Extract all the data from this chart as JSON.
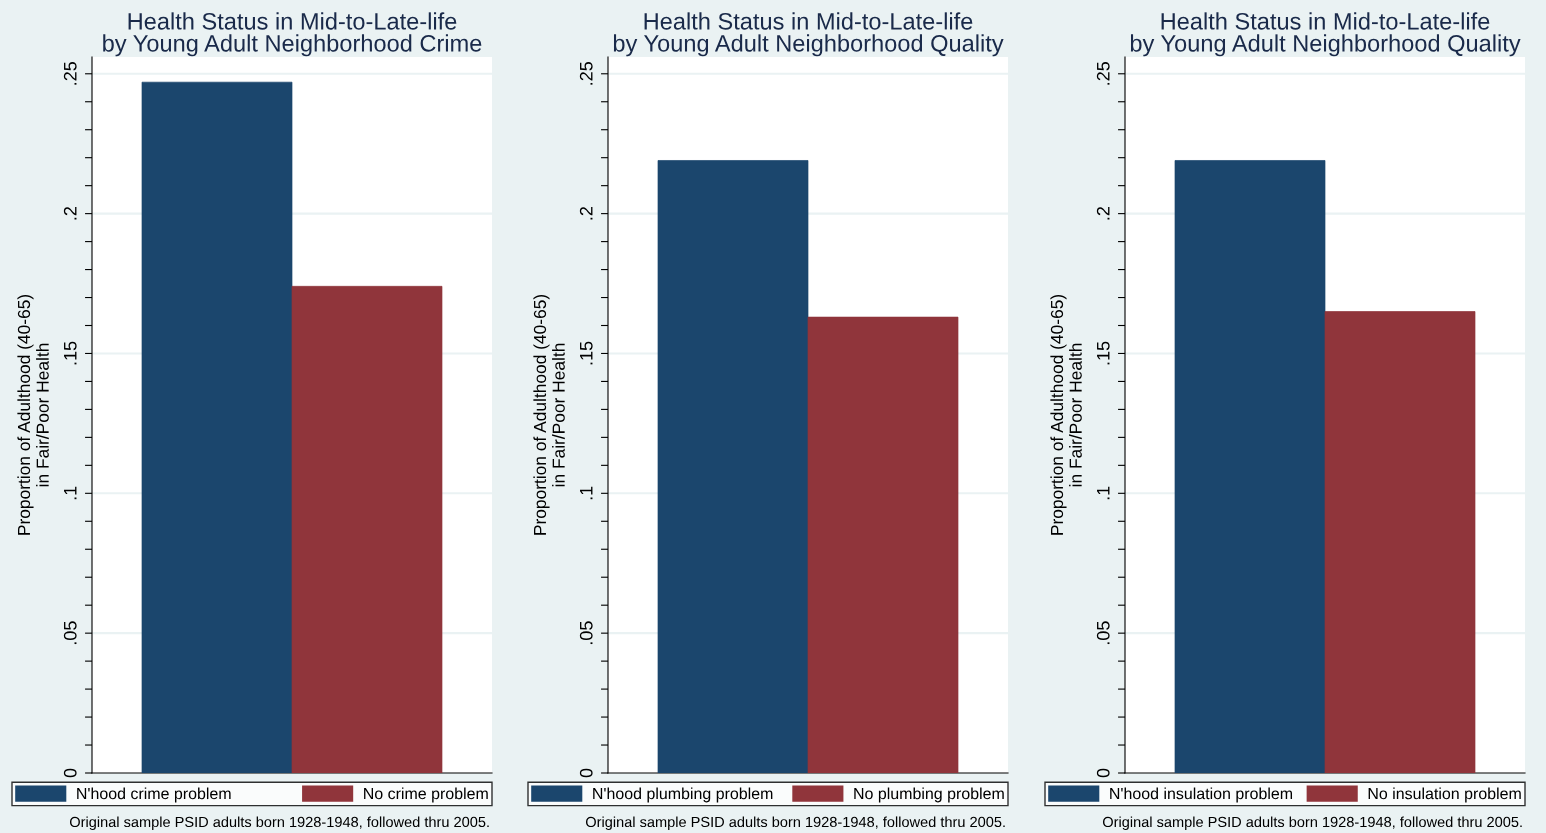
{
  "chart_data": [
    {
      "type": "bar",
      "title": "Health Status in Mid-to-Late-life\nby Young Adult Neighborhood Crime",
      "ylabel": "Proportion of Adulthood (40-65)\nin Fair/Poor Health",
      "categories": [
        null
      ],
      "series": [
        {
          "name": "N'hood crime problem",
          "color": "#1b466d",
          "values": [
            0.247
          ]
        },
        {
          "name": "No crime problem",
          "color": "#90353b",
          "values": [
            0.174
          ]
        }
      ],
      "ylim": [
        0,
        0.256
      ],
      "yticks": [
        {
          "value": 0,
          "label": "0"
        },
        {
          "value": 0.01,
          "label": null
        },
        {
          "value": 0.02,
          "label": null
        },
        {
          "value": 0.03,
          "label": null
        },
        {
          "value": 0.04,
          "label": null
        },
        {
          "value": 0.05,
          "label": ".05"
        },
        {
          "value": 0.06,
          "label": null
        },
        {
          "value": 0.07,
          "label": null
        },
        {
          "value": 0.08,
          "label": null
        },
        {
          "value": 0.09,
          "label": null
        },
        {
          "value": 0.1,
          "label": ".1"
        },
        {
          "value": 0.11,
          "label": null
        },
        {
          "value": 0.12,
          "label": null
        },
        {
          "value": 0.13,
          "label": null
        },
        {
          "value": 0.14,
          "label": null
        },
        {
          "value": 0.15,
          "label": ".15"
        },
        {
          "value": 0.16,
          "label": null
        },
        {
          "value": 0.17,
          "label": null
        },
        {
          "value": 0.18,
          "label": null
        },
        {
          "value": 0.19,
          "label": null
        },
        {
          "value": 0.2,
          "label": ".2"
        },
        {
          "value": 0.21,
          "label": null
        },
        {
          "value": 0.22,
          "label": null
        },
        {
          "value": 0.23,
          "label": null
        },
        {
          "value": 0.24,
          "label": null
        },
        {
          "value": 0.25,
          "label": ".25"
        }
      ],
      "grid": "y",
      "legend": "bottom",
      "annotations": [
        "Original sample PSID adults born 1928-1948, followed thru 2005."
      ]
    },
    {
      "type": "bar",
      "title": "Health Status in Mid-to-Late-life\nby Young Adult Neighborhood Quality",
      "ylabel": "Proportion of Adulthood (40-65)\nin Fair/Poor Health",
      "categories": [
        null
      ],
      "series": [
        {
          "name": "N'hood plumbing problem",
          "color": "#1b466d",
          "values": [
            0.219
          ]
        },
        {
          "name": "No plumbing problem",
          "color": "#90353b",
          "values": [
            0.163
          ]
        }
      ],
      "ylim": [
        0,
        0.256
      ],
      "yticks": [
        {
          "value": 0,
          "label": "0"
        },
        {
          "value": 0.01,
          "label": null
        },
        {
          "value": 0.02,
          "label": null
        },
        {
          "value": 0.03,
          "label": null
        },
        {
          "value": 0.04,
          "label": null
        },
        {
          "value": 0.05,
          "label": ".05"
        },
        {
          "value": 0.06,
          "label": null
        },
        {
          "value": 0.07,
          "label": null
        },
        {
          "value": 0.08,
          "label": null
        },
        {
          "value": 0.09,
          "label": null
        },
        {
          "value": 0.1,
          "label": ".1"
        },
        {
          "value": 0.11,
          "label": null
        },
        {
          "value": 0.12,
          "label": null
        },
        {
          "value": 0.13,
          "label": null
        },
        {
          "value": 0.14,
          "label": null
        },
        {
          "value": 0.15,
          "label": ".15"
        },
        {
          "value": 0.16,
          "label": null
        },
        {
          "value": 0.17,
          "label": null
        },
        {
          "value": 0.18,
          "label": null
        },
        {
          "value": 0.19,
          "label": null
        },
        {
          "value": 0.2,
          "label": ".2"
        },
        {
          "value": 0.21,
          "label": null
        },
        {
          "value": 0.22,
          "label": null
        },
        {
          "value": 0.23,
          "label": null
        },
        {
          "value": 0.24,
          "label": null
        },
        {
          "value": 0.25,
          "label": ".25"
        }
      ],
      "grid": "y",
      "legend": "bottom",
      "annotations": [
        "Original sample PSID adults born 1928-1948, followed thru 2005."
      ]
    },
    {
      "type": "bar",
      "title": "Health Status in Mid-to-Late-life\nby Young Adult Neighborhood Quality",
      "ylabel": "Proportion of Adulthood (40-65)\nin Fair/Poor Health",
      "categories": [
        null
      ],
      "series": [
        {
          "name": "N'hood insulation problem",
          "color": "#1b466d",
          "values": [
            0.219
          ]
        },
        {
          "name": "No insulation problem",
          "color": "#90353b",
          "values": [
            0.165
          ]
        }
      ],
      "ylim": [
        0,
        0.256
      ],
      "yticks": [
        {
          "value": 0,
          "label": "0"
        },
        {
          "value": 0.01,
          "label": null
        },
        {
          "value": 0.02,
          "label": null
        },
        {
          "value": 0.03,
          "label": null
        },
        {
          "value": 0.04,
          "label": null
        },
        {
          "value": 0.05,
          "label": ".05"
        },
        {
          "value": 0.06,
          "label": null
        },
        {
          "value": 0.07,
          "label": null
        },
        {
          "value": 0.08,
          "label": null
        },
        {
          "value": 0.09,
          "label": null
        },
        {
          "value": 0.1,
          "label": ".1"
        },
        {
          "value": 0.11,
          "label": null
        },
        {
          "value": 0.12,
          "label": null
        },
        {
          "value": 0.13,
          "label": null
        },
        {
          "value": 0.14,
          "label": null
        },
        {
          "value": 0.15,
          "label": ".15"
        },
        {
          "value": 0.16,
          "label": null
        },
        {
          "value": 0.17,
          "label": null
        },
        {
          "value": 0.18,
          "label": null
        },
        {
          "value": 0.19,
          "label": null
        },
        {
          "value": 0.2,
          "label": ".2"
        },
        {
          "value": 0.21,
          "label": null
        },
        {
          "value": 0.22,
          "label": null
        },
        {
          "value": 0.23,
          "label": null
        },
        {
          "value": 0.24,
          "label": null
        },
        {
          "value": 0.25,
          "label": ".25"
        }
      ],
      "grid": "y",
      "legend": "bottom",
      "annotations": [
        "Original sample PSID adults born 1928-1948, followed thru 2005."
      ]
    }
  ]
}
